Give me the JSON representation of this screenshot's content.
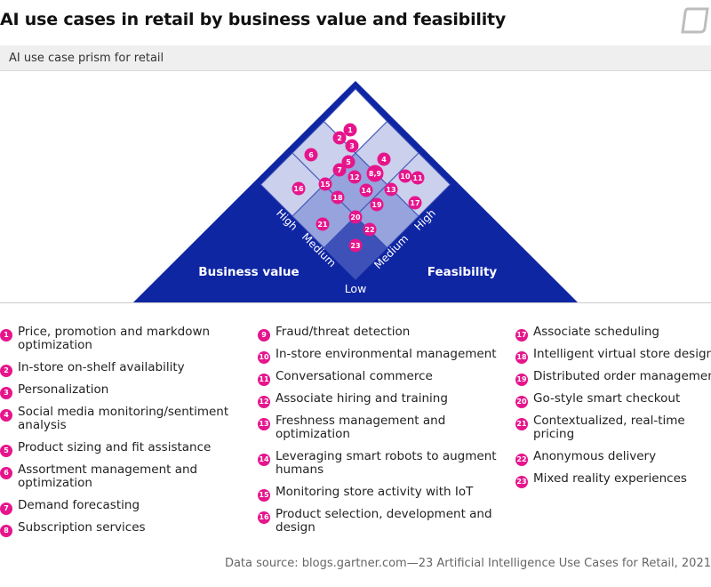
{
  "header": {
    "title": "AI use cases in retail by business value and feasibility",
    "logo_icon": "speech-bubble-logo-icon",
    "subtitle": "AI use case prism for retail"
  },
  "colors": {
    "navy": "#0f26a3",
    "tier_dark": "#3d51b8",
    "tier_medium": "#97a3dc",
    "tier_light": "#cbd0ec",
    "badge": "#e6158c"
  },
  "chart_data": {
    "type": "scatter",
    "axes": {
      "business_value_label": "Business value",
      "feasibility_label": "Feasibility",
      "levels": [
        "Low",
        "Medium",
        "High"
      ],
      "low_label": "Low",
      "bv_high": "High",
      "bv_medium": "Medium",
      "fe_high": "High",
      "fe_medium": "Medium"
    },
    "points": [
      {
        "id": "1",
        "business_value": "High",
        "feasibility": "High"
      },
      {
        "id": "2",
        "business_value": "High",
        "feasibility": "High"
      },
      {
        "id": "3",
        "business_value": "High",
        "feasibility": "High"
      },
      {
        "id": "4",
        "business_value": "Medium",
        "feasibility": "High"
      },
      {
        "id": "5",
        "business_value": "High",
        "feasibility": "Medium"
      },
      {
        "id": "6",
        "business_value": "High",
        "feasibility": "Medium"
      },
      {
        "id": "7",
        "business_value": "High",
        "feasibility": "Medium"
      },
      {
        "id": "8,9",
        "business_value": "Medium",
        "feasibility": "Medium"
      },
      {
        "id": "10",
        "business_value": "Low",
        "feasibility": "High"
      },
      {
        "id": "11",
        "business_value": "Low",
        "feasibility": "High"
      },
      {
        "id": "12",
        "business_value": "Medium",
        "feasibility": "Medium"
      },
      {
        "id": "13",
        "business_value": "Medium",
        "feasibility": "Medium"
      },
      {
        "id": "14",
        "business_value": "Medium",
        "feasibility": "Medium"
      },
      {
        "id": "15",
        "business_value": "High",
        "feasibility": "Low"
      },
      {
        "id": "16",
        "business_value": "High",
        "feasibility": "Low"
      },
      {
        "id": "17",
        "business_value": "Low",
        "feasibility": "High"
      },
      {
        "id": "18",
        "business_value": "Medium",
        "feasibility": "Low"
      },
      {
        "id": "19",
        "business_value": "Low",
        "feasibility": "Medium"
      },
      {
        "id": "20",
        "business_value": "Medium",
        "feasibility": "Low"
      },
      {
        "id": "21",
        "business_value": "Medium",
        "feasibility": "Low"
      },
      {
        "id": "22",
        "business_value": "Low",
        "feasibility": "Medium"
      },
      {
        "id": "23",
        "business_value": "Low",
        "feasibility": "Low"
      }
    ]
  },
  "legend": {
    "columns": [
      [
        {
          "num": "1",
          "lines": [
            "Price, promotion and markdown",
            "optimization"
          ]
        },
        {
          "num": "2",
          "lines": [
            "In-store on-shelf availability"
          ]
        },
        {
          "num": "3",
          "lines": [
            "Personalization"
          ]
        },
        {
          "num": "4",
          "lines": [
            "Social media monitoring/sentiment",
            "analysis"
          ]
        },
        {
          "num": "5",
          "lines": [
            "Product sizing and fit assistance"
          ]
        },
        {
          "num": "6",
          "lines": [
            "Assortment management and",
            "optimization"
          ]
        },
        {
          "num": "7",
          "lines": [
            "Demand forecasting"
          ]
        },
        {
          "num": "8",
          "lines": [
            "Subscription services"
          ]
        }
      ],
      [
        {
          "num": "9",
          "lines": [
            "Fraud/threat detection"
          ]
        },
        {
          "num": "10",
          "lines": [
            "In-store environmental management"
          ]
        },
        {
          "num": "11",
          "lines": [
            "Conversational commerce"
          ]
        },
        {
          "num": "12",
          "lines": [
            "Associate hiring and training"
          ]
        },
        {
          "num": "13",
          "lines": [
            "Freshness management and",
            "optimization"
          ]
        },
        {
          "num": "14",
          "lines": [
            "Leveraging smart robots to augment",
            "humans"
          ]
        },
        {
          "num": "15",
          "lines": [
            "Monitoring store activity with IoT"
          ]
        },
        {
          "num": "16",
          "lines": [
            "Product selection, development and",
            "design"
          ]
        }
      ],
      [
        {
          "num": "17",
          "lines": [
            "Associate scheduling"
          ]
        },
        {
          "num": "18",
          "lines": [
            "Intelligent virtual store design"
          ]
        },
        {
          "num": "19",
          "lines": [
            "Distributed order management"
          ]
        },
        {
          "num": "20",
          "lines": [
            "Go-style smart checkout"
          ]
        },
        {
          "num": "21",
          "lines": [
            "Contextualized, real-time",
            "pricing"
          ]
        },
        {
          "num": "22",
          "lines": [
            "Anonymous delivery"
          ]
        },
        {
          "num": "23",
          "lines": [
            "Mixed reality experiences"
          ]
        }
      ]
    ]
  },
  "footer": {
    "source": "Data source: blogs.gartner.com—23 Artificial Intelligence Use Cases for Retail, 2021"
  }
}
